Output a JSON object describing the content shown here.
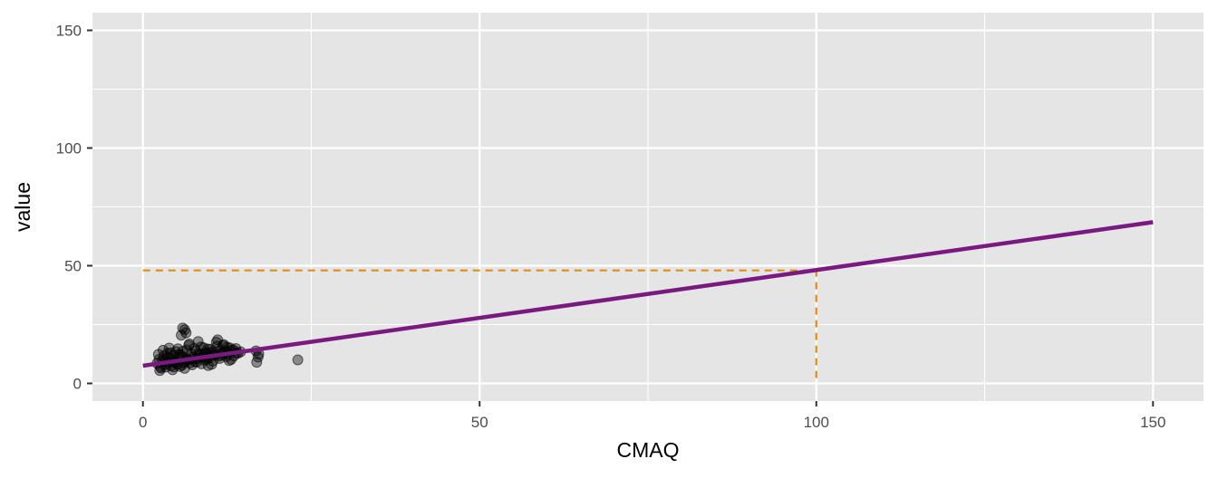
{
  "chart_data": {
    "type": "scatter",
    "title": "",
    "xlabel": "CMAQ",
    "ylabel": "value",
    "xlim": [
      -7.5,
      157.5
    ],
    "ylim": [
      -7.5,
      157.5
    ],
    "x_ticks": [
      0,
      50,
      100,
      150
    ],
    "y_ticks": [
      0,
      50,
      100,
      150
    ],
    "x_tick_labels": [
      "0",
      "50",
      "100",
      "150"
    ],
    "y_tick_labels": [
      "0",
      "50",
      "100",
      "150"
    ],
    "grid": true,
    "legend": "none",
    "colors": {
      "panel_background": "#e5e5e5",
      "gridline": "#ffffff",
      "points": "#000000",
      "fit_line": "#7a1a80",
      "reference_line": "#e08b1a"
    },
    "series": [
      {
        "kind": "points",
        "x": [
          2.1,
          2.4,
          2.6,
          2.9,
          3.1,
          3.3,
          3.6,
          3.8,
          4.0,
          4.2,
          4.5,
          4.7,
          4.9,
          5.1,
          5.4,
          5.6,
          5.8,
          6.0,
          6.3,
          6.5,
          6.7,
          7.0,
          7.2,
          7.4,
          7.7,
          7.9,
          8.1,
          8.4,
          8.6,
          8.8,
          9.1,
          9.3,
          9.5,
          9.8,
          10.0,
          10.3,
          10.5,
          10.8,
          11.0,
          11.3,
          11.5,
          11.8,
          12.0,
          12.3,
          12.6,
          12.9,
          13.2,
          13.5,
          13.8,
          14.1,
          14.5,
          2.3,
          2.7,
          3.0,
          3.4,
          3.7,
          4.1,
          4.4,
          4.8,
          5.2,
          5.5,
          5.9,
          6.2,
          6.6,
          6.9,
          7.3,
          7.6,
          8.0,
          8.3,
          8.7,
          9.0,
          9.4,
          9.7,
          10.1,
          10.4,
          10.9,
          11.4,
          11.9,
          12.4,
          12.8,
          13.4,
          2.5,
          3.2,
          3.9,
          4.6,
          5.3,
          6.1,
          6.8,
          7.5,
          8.2,
          8.9,
          9.6,
          10.2,
          11.1,
          11.7,
          12.5,
          13.1,
          13.9,
          5.7,
          6.2,
          6.4,
          5.9,
          16.8,
          17.1,
          16.9,
          17.2,
          23.0
        ],
        "y": [
          8.5,
          10.2,
          7.1,
          9.8,
          11.5,
          8.0,
          12.8,
          9.0,
          10.5,
          7.5,
          11.8,
          9.3,
          13.5,
          8.2,
          10.9,
          12.1,
          7.8,
          11.2,
          9.6,
          14.2,
          10.0,
          8.7,
          12.5,
          11.0,
          9.2,
          13.8,
          10.7,
          12.0,
          15.5,
          11.3,
          9.9,
          13.1,
          12.6,
          10.8,
          14.5,
          11.9,
          13.3,
          12.2,
          15.8,
          11.6,
          14.0,
          12.9,
          16.5,
          13.7,
          12.4,
          15.1,
          13.9,
          11.7,
          14.8,
          12.8,
          13.4,
          12.3,
          6.5,
          14.1,
          6.9,
          11.0,
          13.0,
          5.8,
          8.9,
          14.7,
          7.2,
          13.6,
          6.4,
          10.3,
          16.8,
          7.9,
          14.9,
          9.1,
          12.7,
          8.3,
          15.2,
          10.1,
          7.6,
          13.2,
          9.5,
          17.5,
          10.6,
          16.0,
          11.4,
          9.7,
          14.3,
          5.5,
          9.4,
          15.0,
          7.0,
          12.2,
          8.8,
          16.2,
          10.4,
          17.8,
          11.1,
          14.6,
          8.1,
          18.5,
          12.0,
          15.4,
          10.2,
          13.0,
          20.5,
          22.8,
          21.5,
          23.5,
          13.8,
          11.2,
          9.0,
          12.5,
          10.0
        ],
        "color": "#000000"
      },
      {
        "kind": "fit_line",
        "x": [
          0,
          150
        ],
        "y": [
          7.5,
          68.5
        ],
        "color": "#7a1a80"
      },
      {
        "kind": "reference_line",
        "x": [
          0,
          100,
          100
        ],
        "y": [
          48,
          48,
          0
        ],
        "color": "#e08b1a"
      }
    ]
  }
}
